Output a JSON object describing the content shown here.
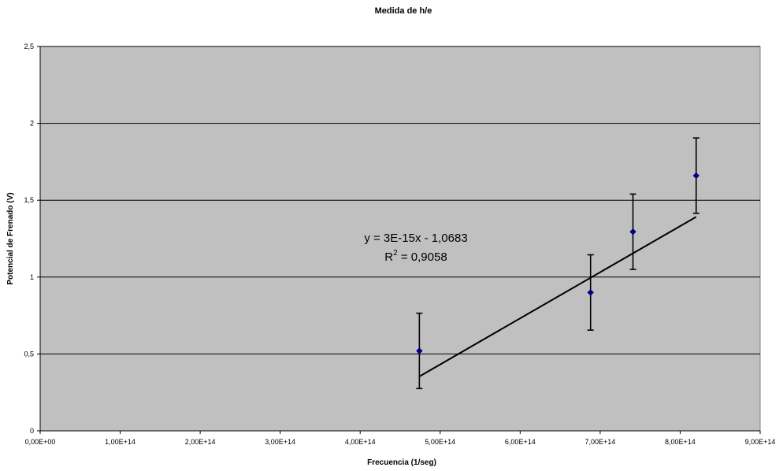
{
  "chart_data": {
    "type": "scatter",
    "title": "Medida de h/e",
    "xlabel": "Frecuencia (1/seg)",
    "ylabel": "Potencial de Frenado (V)",
    "xlim": [
      0,
      900000000000000.0
    ],
    "ylim": [
      0,
      2.5
    ],
    "x_ticks": [
      0,
      100000000000000.0,
      200000000000000.0,
      300000000000000.0,
      400000000000000.0,
      500000000000000.0,
      600000000000000.0,
      700000000000000.0,
      800000000000000.0,
      900000000000000.0
    ],
    "x_tick_labels": [
      "0,00E+00",
      "1,00E+14",
      "2,00E+14",
      "3,00E+14",
      "4,00E+14",
      "5,00E+14",
      "6,00E+14",
      "7,00E+14",
      "8,00E+14",
      "9,00E+14"
    ],
    "y_ticks": [
      0,
      0.5,
      1,
      1.5,
      2,
      2.5
    ],
    "y_tick_labels": [
      "0",
      "0,5",
      "1",
      "1,5",
      "2",
      "2,5"
    ],
    "grid": "horizontal",
    "plot_background": "#c0c0c0",
    "series": [
      {
        "marker": "diamond",
        "color": "#000080",
        "points": [
          {
            "x": 474000000000000.0,
            "y": 0.52,
            "err": 0.245
          },
          {
            "x": 688000000000000.0,
            "y": 0.9,
            "err": 0.245
          },
          {
            "x": 741000000000000.0,
            "y": 1.295,
            "err": 0.245
          },
          {
            "x": 820000000000000.0,
            "y": 1.66,
            "err": 0.245
          }
        ]
      }
    ],
    "trendline": {
      "slope": 3e-15,
      "intercept": -1.0683,
      "x_range": [
        474000000000000.0,
        820000000000000.0
      ],
      "color": "#000000",
      "equation_label": "y = 3E-15x - 1,0683",
      "r2_prefix": "R",
      "r2_sup": "2",
      "r2_value": " = 0,9058"
    }
  }
}
